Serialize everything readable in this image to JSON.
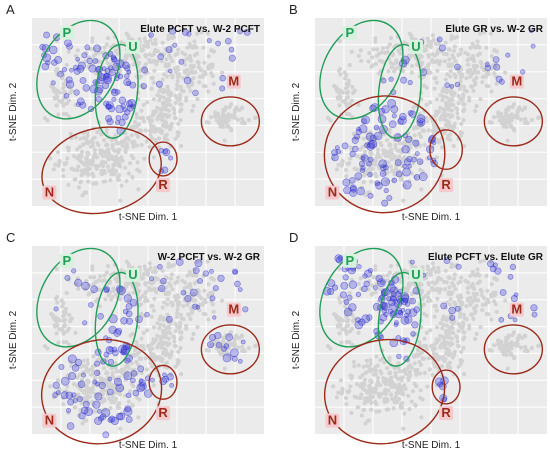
{
  "colors": {
    "green_region": "#1f9e57",
    "red_region": "#9b2a1a",
    "label_pink_bg": "#f6c9cc",
    "label_green_bg": "#d6f1dc",
    "foreground_points": "#3c3cd8",
    "background_points": "#d2d2d2"
  },
  "chart_data": [
    {
      "type": "scatter",
      "panel": "A",
      "title": "Elute PCFT vs. W-2 PCFT",
      "xlabel": "t-SNE Dim. 1",
      "ylabel": "t-SNE Dim. 2",
      "regions": [
        {
          "label": "P",
          "group": "green",
          "cx": -0.6,
          "cy": 0.45,
          "rx": 0.32,
          "ry": 0.56,
          "angle": 30
        },
        {
          "label": "U",
          "group": "green",
          "cx": -0.27,
          "cy": 0.22,
          "rx": 0.18,
          "ry": 0.5,
          "angle": 6
        },
        {
          "label": "N",
          "group": "red",
          "cx": -0.4,
          "cy": -0.62,
          "rx": 0.52,
          "ry": 0.45,
          "angle": -12
        },
        {
          "label": "R",
          "group": "red",
          "cx": 0.13,
          "cy": -0.5,
          "rx": 0.12,
          "ry": 0.18,
          "angle": 0
        },
        {
          "label": "M",
          "group": "red",
          "cx": 0.71,
          "cy": -0.1,
          "rx": 0.25,
          "ry": 0.26,
          "angle": 0
        }
      ],
      "highlight": "PU"
    },
    {
      "type": "scatter",
      "panel": "B",
      "title": "Elute GR vs. W-2 GR",
      "xlabel": "t-SNE Dim. 1",
      "ylabel": "t-SNE Dim. 2",
      "regions": [
        {
          "label": "P",
          "group": "green",
          "cx": -0.6,
          "cy": 0.45,
          "rx": 0.32,
          "ry": 0.56,
          "angle": 30
        },
        {
          "label": "U",
          "group": "green",
          "cx": -0.27,
          "cy": 0.22,
          "rx": 0.18,
          "ry": 0.5,
          "angle": 6
        },
        {
          "label": "N",
          "group": "red",
          "cx": -0.4,
          "cy": -0.45,
          "rx": 0.52,
          "ry": 0.62,
          "angle": -12
        },
        {
          "label": "R",
          "group": "red",
          "cx": 0.13,
          "cy": -0.4,
          "rx": 0.14,
          "ry": 0.21,
          "angle": 0
        },
        {
          "label": "M",
          "group": "red",
          "cx": 0.71,
          "cy": -0.1,
          "rx": 0.25,
          "ry": 0.26,
          "angle": 0
        }
      ],
      "highlight": "N"
    },
    {
      "type": "scatter",
      "panel": "C",
      "title": "W-2 PCFT vs. W-2 GR",
      "xlabel": "t-SNE Dim. 1",
      "ylabel": "t-SNE Dim. 2",
      "regions": [
        {
          "label": "P",
          "group": "green",
          "cx": -0.6,
          "cy": 0.45,
          "rx": 0.32,
          "ry": 0.56,
          "angle": 30
        },
        {
          "label": "U",
          "group": "green",
          "cx": -0.27,
          "cy": 0.22,
          "rx": 0.18,
          "ry": 0.5,
          "angle": 6
        },
        {
          "label": "N",
          "group": "red",
          "cx": -0.4,
          "cy": -0.55,
          "rx": 0.52,
          "ry": 0.55,
          "angle": -12
        },
        {
          "label": "R",
          "group": "red",
          "cx": 0.13,
          "cy": -0.45,
          "rx": 0.12,
          "ry": 0.18,
          "angle": 0
        },
        {
          "label": "M",
          "group": "red",
          "cx": 0.71,
          "cy": -0.1,
          "rx": 0.25,
          "ry": 0.26,
          "angle": 0
        }
      ],
      "highlight": "ALL"
    },
    {
      "type": "scatter",
      "panel": "D",
      "title": "Elute PCFT vs. Elute GR",
      "xlabel": "t-SNE Dim. 1",
      "ylabel": "t-SNE Dim. 2",
      "regions": [
        {
          "label": "P",
          "group": "green",
          "cx": -0.6,
          "cy": 0.45,
          "rx": 0.32,
          "ry": 0.56,
          "angle": 30
        },
        {
          "label": "U",
          "group": "green",
          "cx": -0.27,
          "cy": 0.22,
          "rx": 0.18,
          "ry": 0.5,
          "angle": 6
        },
        {
          "label": "N",
          "group": "red",
          "cx": -0.4,
          "cy": -0.55,
          "rx": 0.52,
          "ry": 0.55,
          "angle": -12
        },
        {
          "label": "R",
          "group": "red",
          "cx": 0.13,
          "cy": -0.5,
          "rx": 0.12,
          "ry": 0.18,
          "angle": 0
        },
        {
          "label": "M",
          "group": "red",
          "cx": 0.71,
          "cy": -0.1,
          "rx": 0.25,
          "ry": 0.26,
          "angle": 0
        }
      ],
      "highlight": "PU"
    }
  ]
}
